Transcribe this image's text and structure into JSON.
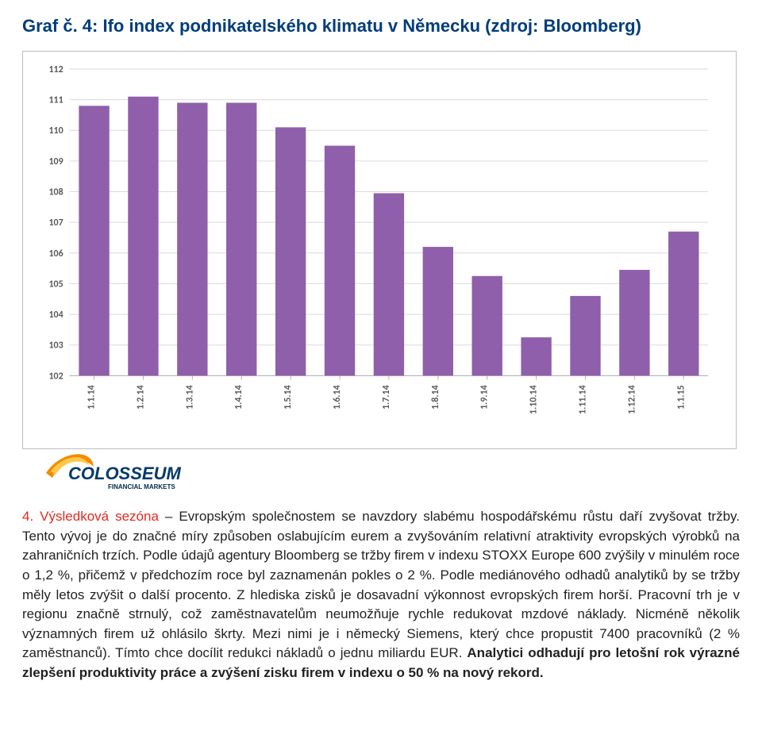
{
  "title": "Graf č. 4: Ifo index podnikatelského klimatu v Německu (zdroj: Bloomberg)",
  "chart": {
    "type": "bar",
    "categories": [
      "1.1.14",
      "1.2.14",
      "1.3.14",
      "1.4.14",
      "1.5.14",
      "1.6.14",
      "1.7.14",
      "1.8.14",
      "1.9.14",
      "1.10.14",
      "1.11.14",
      "1.12.14",
      "1.1.15"
    ],
    "values": [
      110.8,
      111.1,
      110.9,
      110.9,
      110.1,
      109.5,
      107.95,
      106.2,
      105.25,
      103.25,
      104.6,
      105.45,
      106.7
    ],
    "bar_color": "#8f5fab",
    "ylim": [
      102,
      112
    ],
    "ytick_step": 1,
    "background_color": "#ffffff",
    "gridline_color": "#d9d9d9",
    "axis_color": "#b0b0b0",
    "axis_text_color": "#595959",
    "axis_fontsize_pt": 12,
    "axis_label_rotation_deg": 90,
    "bar_width_ratio": 0.62
  },
  "logo": {
    "main": "COLOSSEUM",
    "sub": "FINANCIAL MARKETS",
    "swoosh_outer": "#f28c00",
    "swoosh_inner": "#ffc84a",
    "main_color": "#003a6c",
    "sub_color": "#00284d"
  },
  "section": {
    "lead_number": "4. Výsledková sezóna",
    "lead_rest": " – Evropským společnostem se navzdory slabému hospodářskému růstu daří zvyšovat tržby. ",
    "body": "Tento vývoj je do značné míry způsoben oslabujícím eurem a zvyšováním relativní atraktivity evropských výrobků na zahraničních trzích. Podle údajů agentury Bloomberg se tržby firem v indexu STOXX Europe 600 zvýšily v minulém roce o 1,2 %, přičemž v předchozím roce byl zaznamenán pokles o 2 %. Podle mediánového odhadů analytiků by se tržby měly letos zvýšit o další procento. Z hlediska zisků je dosavadní výkonnost evropských firem horší. Pracovní trh je v regionu značně strnulý, což zaměstnavatelům neumožňuje rychle redukovat mzdové náklady. Nicméně několik významných firem už ohlásilo škrty. Mezi nimi je i německý Siemens, který chce propustit 7400 pracovníků (2 % zaměstnanců). Tímto chce docílit redukci nákladů o jednu miliardu EUR. ",
    "bold_tail": "Analytici odhadují pro letošní rok výrazné zlepšení produktivity práce a zvýšení zisku firem v indexu o 50 % na nový rekord."
  }
}
